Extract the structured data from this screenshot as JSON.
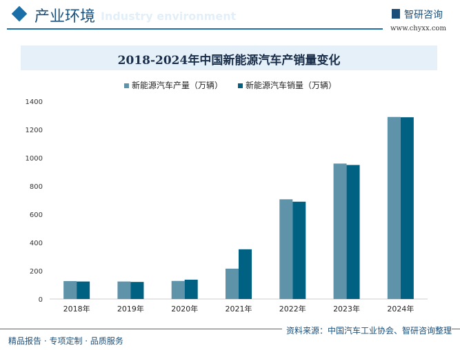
{
  "header": {
    "title": "产业环境",
    "subtitle_en": "Industry environment",
    "brand": "智研咨询",
    "url": "www.chyxx.com"
  },
  "footer": {
    "left": "精品报告 · 专项定制 · 品质服务",
    "source": "资料来源：中国汽车工业协会、智研咨询整理"
  },
  "chart_data": {
    "type": "bar",
    "title": "2018-2024年中国新能源汽车产销量变化",
    "categories": [
      "2018年",
      "2019年",
      "2020年",
      "2021年",
      "2022年",
      "2023年",
      "2024年"
    ],
    "series": [
      {
        "name": "新能源汽车产量（万辆）",
        "color": "#5f93aa",
        "values": [
          127,
          124,
          128,
          215,
          706,
          959,
          1289
        ]
      },
      {
        "name": "新能源汽车销量（万辆）",
        "color": "#006183",
        "values": [
          124,
          121,
          137,
          352,
          689,
          949,
          1287
        ]
      }
    ],
    "ylim": [
      0,
      1400
    ],
    "yticks": [
      0,
      200,
      400,
      600,
      800,
      1000,
      1200,
      1400
    ],
    "legend": "top-center",
    "grid": false
  }
}
